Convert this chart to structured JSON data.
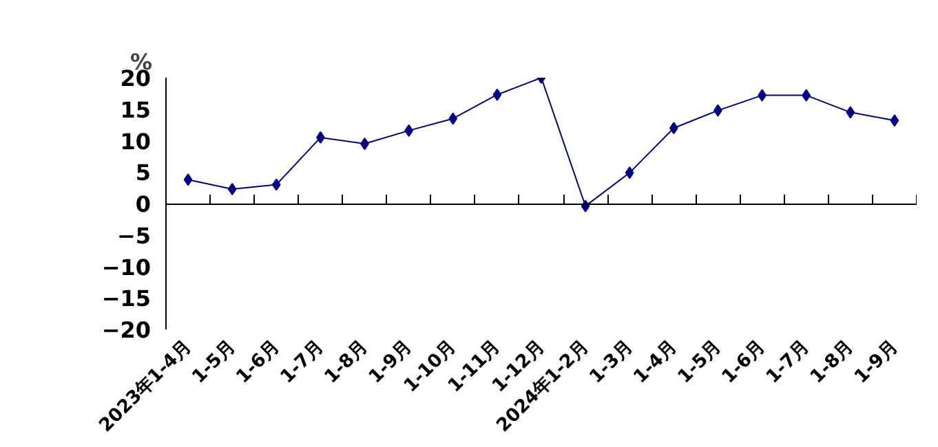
{
  "chart_data": {
    "type": "line",
    "ylabel": "%",
    "categories": [
      "2023年1-4月",
      "1-5月",
      "1-6月",
      "1-7月",
      "1-8月",
      "1-9月",
      "1-10月",
      "1-11月",
      "1-12月",
      "2024年1-2月",
      "1-3月",
      "1-4月",
      "1-5月",
      "1-6月",
      "1-7月",
      "1-8月",
      "1-9月"
    ],
    "series": [
      {
        "color": "#000080",
        "values": [
          3.8,
          2.3,
          3.0,
          10.5,
          9.5,
          11.6,
          13.5,
          17.3,
          20.0,
          -0.4,
          4.9,
          12.0,
          14.8,
          17.2,
          17.2,
          14.5,
          13.2
        ]
      }
    ],
    "ylim": [
      -20,
      20
    ],
    "yticks": [
      -20,
      -15,
      -10,
      -5,
      0,
      5,
      10,
      15,
      20
    ],
    "marker": "diamond",
    "line_style": "solid"
  }
}
